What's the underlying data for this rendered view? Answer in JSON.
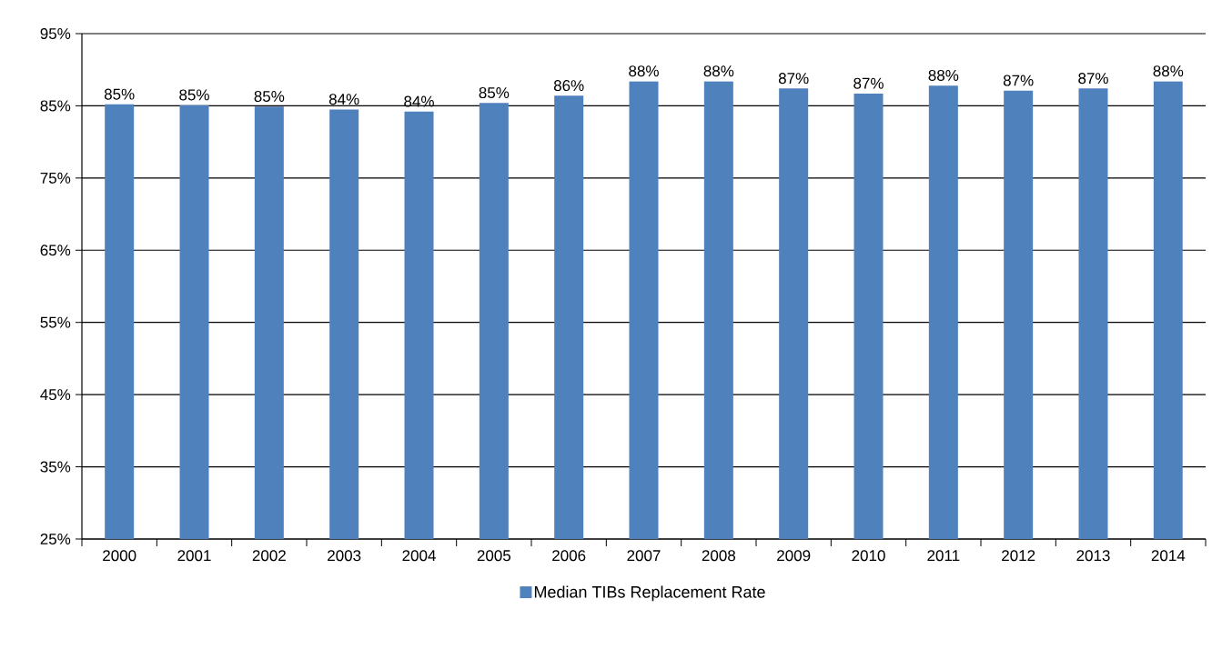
{
  "chart_data": {
    "type": "bar",
    "categories": [
      "2000",
      "2001",
      "2002",
      "2003",
      "2004",
      "2005",
      "2006",
      "2007",
      "2008",
      "2009",
      "2010",
      "2011",
      "2012",
      "2013",
      "2014"
    ],
    "series": [
      {
        "name": "Median TIBs Replacement Rate",
        "color": "#4f81bd",
        "values": [
          85.2,
          85.1,
          84.9,
          84.5,
          84.2,
          85.4,
          86.4,
          88.4,
          88.4,
          87.4,
          86.7,
          87.8,
          87.1,
          87.4,
          88.4
        ],
        "value_labels": [
          "85%",
          "85%",
          "85%",
          "84%",
          "84%",
          "85%",
          "86%",
          "88%",
          "88%",
          "87%",
          "87%",
          "88%",
          "87%",
          "87%",
          "88%"
        ]
      }
    ],
    "ylim": [
      25,
      95
    ],
    "yticks": [
      {
        "value": 25,
        "label": "25%"
      },
      {
        "value": 35,
        "label": "35%"
      },
      {
        "value": 45,
        "label": "45%"
      },
      {
        "value": 55,
        "label": "55%"
      },
      {
        "value": 65,
        "label": "65%"
      },
      {
        "value": 75,
        "label": "75%"
      },
      {
        "value": 85,
        "label": "85%"
      },
      {
        "value": 95,
        "label": "95%"
      }
    ],
    "grid": "y",
    "legend": "bottom"
  }
}
